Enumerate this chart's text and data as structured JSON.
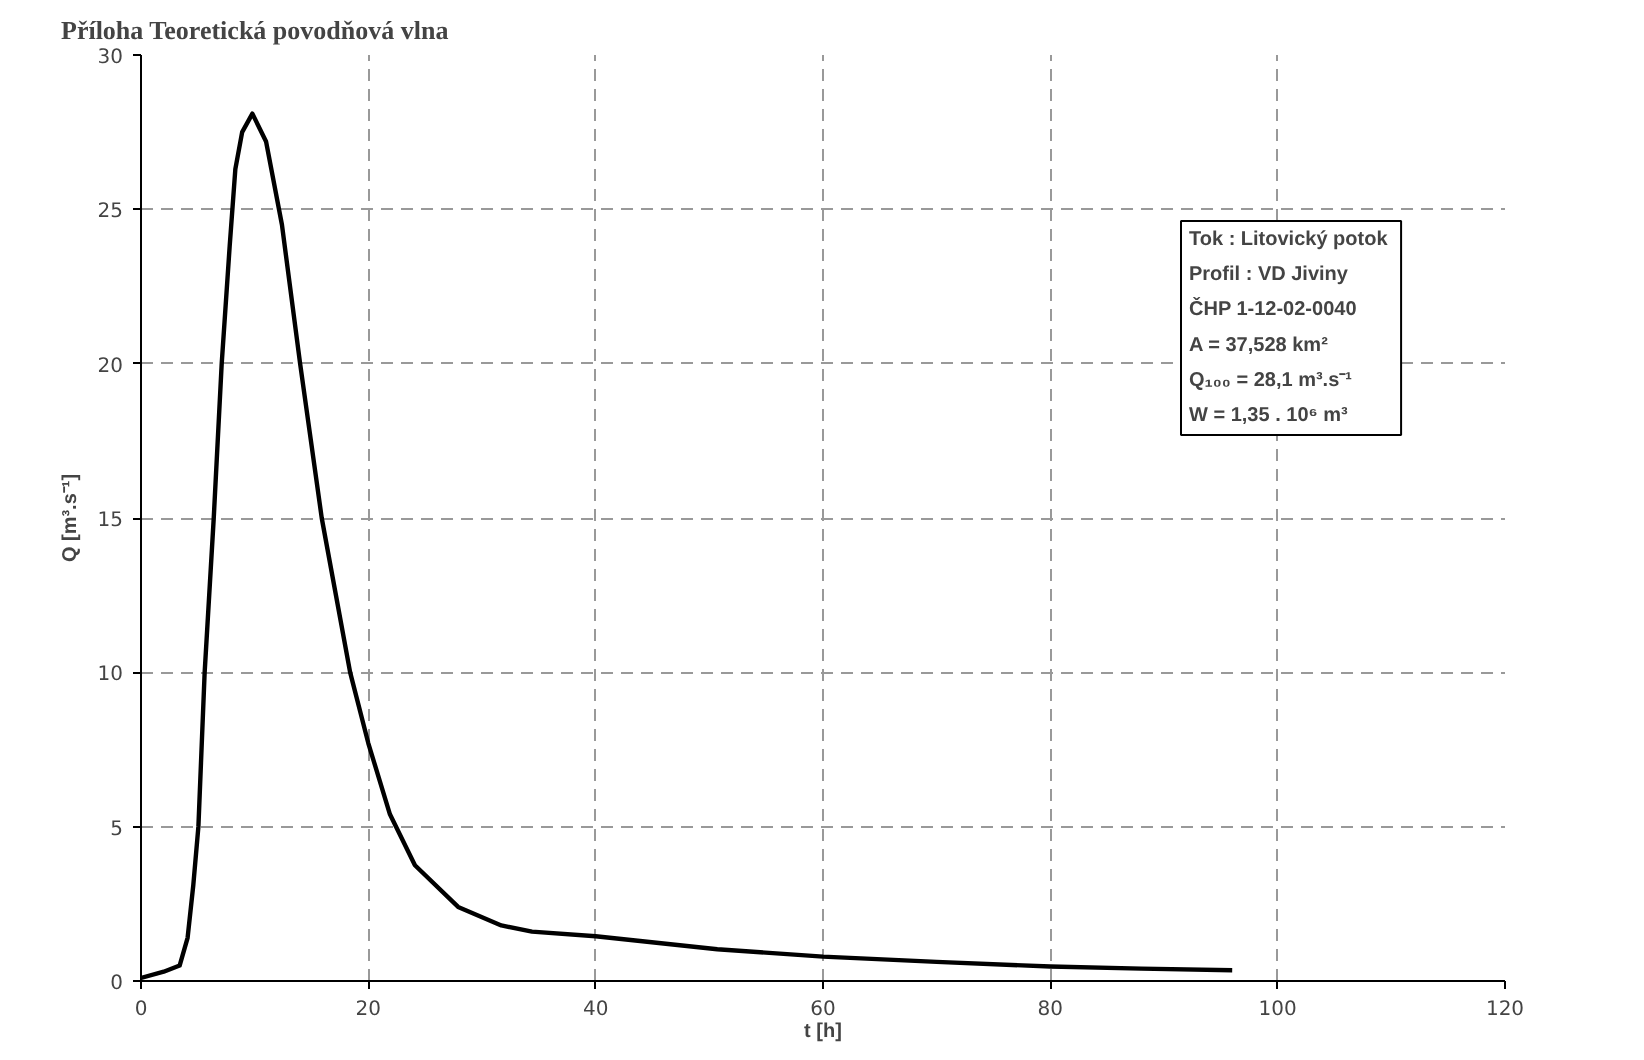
{
  "chart_data": {
    "type": "line",
    "title": "Příloha Teoretická povodňová vlna",
    "xlabel": "t [h]",
    "ylabel": "Q [m³.s⁻¹]",
    "annotations": [
      "Tok :  Litovický potok",
      "Profil :  VD Jiviny",
      "ČHP   1-12-02-0040",
      "A = 37,528 km²",
      "Q₁₀₀  =  28,1   m³.s⁻¹",
      "W  = 1,35 . 10⁶ m³"
    ],
    "series": [
      {
        "color": "#000000",
        "x": [
          0,
          2,
          3.4,
          4.1,
          4.6,
          5.05,
          5.6,
          6.4,
          7.1,
          7.8,
          8.3,
          8.9,
          9.8,
          11.0,
          12.4,
          14.0,
          15.9,
          18.4,
          20,
          21.9,
          24.1,
          27.9,
          31.7,
          34.4,
          40,
          50.7,
          60,
          70,
          80,
          88,
          96
        ],
        "values": [
          0.1,
          0.3,
          0.5,
          1.4,
          3.1,
          5.0,
          10,
          15,
          20,
          23.8,
          26.3,
          27.5,
          28.1,
          27.2,
          24.5,
          20,
          15,
          10,
          7.7,
          5.4,
          3.75,
          2.4,
          1.8,
          1.6,
          1.45,
          1.03,
          0.79,
          0.62,
          0.47,
          0.4,
          0.35
        ]
      }
    ],
    "xlim": [
      0,
      120
    ],
    "ylim": [
      0,
      30
    ],
    "xticks": [
      0,
      20,
      40,
      60,
      80,
      100,
      120
    ],
    "yticks": [
      0,
      5,
      10,
      15,
      20,
      25,
      30
    ],
    "grid": true,
    "marker": "none",
    "line_style": "solid"
  }
}
